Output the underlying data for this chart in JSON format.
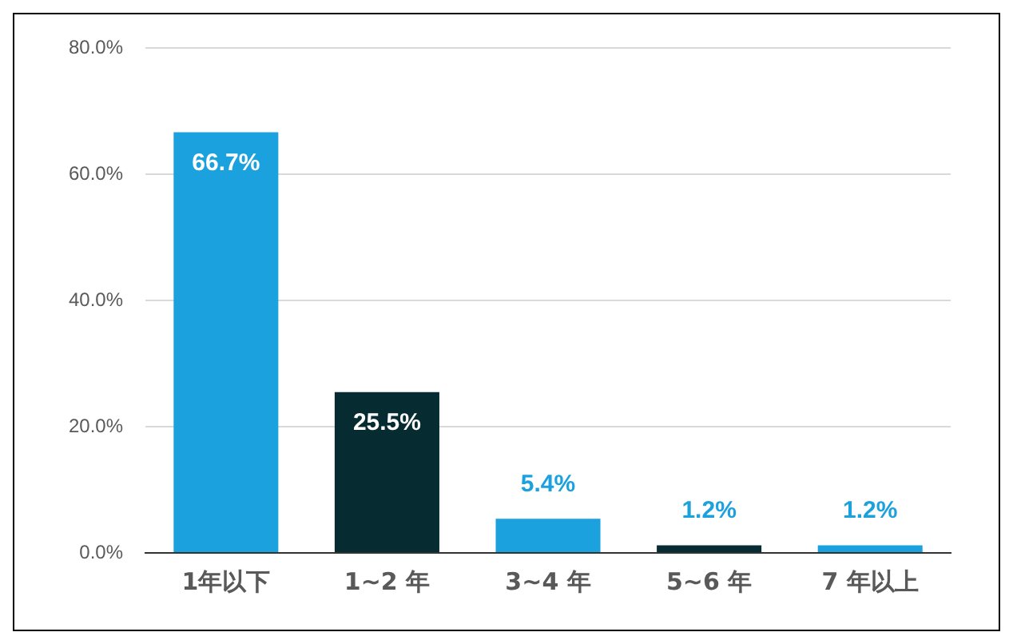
{
  "chart_data": {
    "type": "bar",
    "categories": [
      "1年以下",
      "1~2 年",
      "3~4 年",
      "5~6 年",
      "7 年以上"
    ],
    "values": [
      66.7,
      25.5,
      5.4,
      1.2,
      1.2
    ],
    "colors": [
      "#1ba1dd",
      "#062b31",
      "#1ba1dd",
      "#062b31",
      "#1ba1dd"
    ],
    "value_labels": [
      "66.7%",
      "25.5%",
      "5.4%",
      "1.2%",
      "1.2%"
    ],
    "ylim": [
      0,
      80
    ],
    "yticks": [
      {
        "value": 0,
        "label": "0.0%"
      },
      {
        "value": 20,
        "label": "20.0%"
      },
      {
        "value": 40,
        "label": "40.0%"
      },
      {
        "value": 60,
        "label": "60.0%"
      },
      {
        "value": 80,
        "label": "80.0%"
      }
    ],
    "grid": "y",
    "legend": false
  }
}
